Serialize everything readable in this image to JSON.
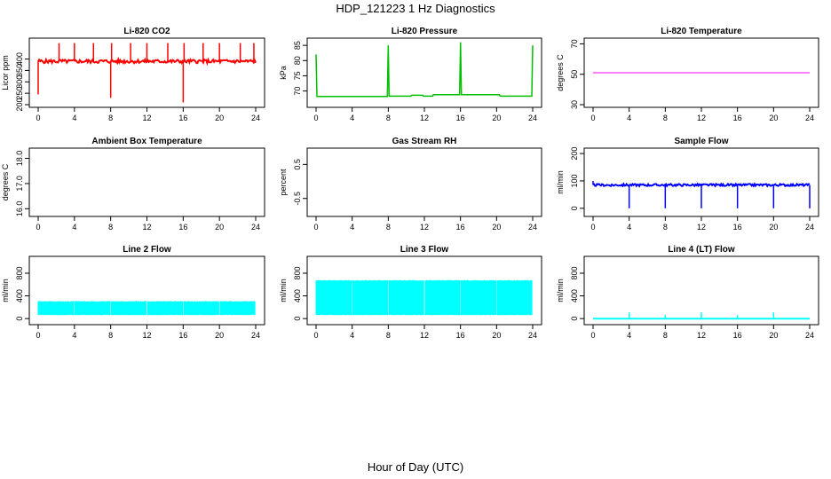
{
  "figure": {
    "title": "HDP_121223  1 Hz Diagnostics",
    "xlabel": "Hour of Day (UTC)"
  },
  "chart_data": [
    {
      "type": "line",
      "title": "Li-820 CO2",
      "ylabel": "Licor ppm",
      "xlim": [
        0,
        24
      ],
      "ylim": [
        200,
        480
      ],
      "xticks": [
        "0",
        "4",
        "8",
        "12",
        "16",
        "20",
        "24"
      ],
      "yticks": [
        "200",
        "250",
        "300",
        "350",
        "400"
      ],
      "color": "#ff0000",
      "series": [
        {
          "baseline": 390,
          "noise": 8,
          "spikes": [
            {
              "x": 0.0,
              "y": 245
            },
            {
              "x": 2.3,
              "y": 470
            },
            {
              "x": 4.0,
              "y": 470
            },
            {
              "x": 6.1,
              "y": 470
            },
            {
              "x": 8.0,
              "y": 230
            },
            {
              "x": 8.1,
              "y": 470
            },
            {
              "x": 10.2,
              "y": 470
            },
            {
              "x": 12.0,
              "y": 470
            },
            {
              "x": 14.3,
              "y": 470
            },
            {
              "x": 16.0,
              "y": 210
            },
            {
              "x": 16.1,
              "y": 470
            },
            {
              "x": 18.2,
              "y": 470
            },
            {
              "x": 20.0,
              "y": 470
            },
            {
              "x": 22.3,
              "y": 470
            },
            {
              "x": 23.8,
              "y": 470
            }
          ]
        }
      ]
    },
    {
      "type": "line",
      "title": "Li-820 Pressure",
      "ylabel": "kPa",
      "xlim": [
        0,
        24
      ],
      "ylim": [
        65.5,
        86.5
      ],
      "xticks": [
        "0",
        "4",
        "8",
        "12",
        "16",
        "20",
        "24"
      ],
      "yticks": [
        "70",
        "75",
        "80",
        "85"
      ],
      "color": "#00c000",
      "series": [
        {
          "points": [
            {
              "x": 0.0,
              "y": 82
            },
            {
              "x": 0.1,
              "y": 68.2
            },
            {
              "x": 7.9,
              "y": 68.2
            },
            {
              "x": 8.0,
              "y": 85
            },
            {
              "x": 8.1,
              "y": 68.3
            },
            {
              "x": 10.5,
              "y": 68.3
            },
            {
              "x": 10.6,
              "y": 68.6
            },
            {
              "x": 11.8,
              "y": 68.6
            },
            {
              "x": 11.9,
              "y": 68.3
            },
            {
              "x": 12.9,
              "y": 68.3
            },
            {
              "x": 13.0,
              "y": 68.8
            },
            {
              "x": 15.9,
              "y": 68.8
            },
            {
              "x": 16.0,
              "y": 86
            },
            {
              "x": 16.1,
              "y": 68.8
            },
            {
              "x": 20.3,
              "y": 68.8
            },
            {
              "x": 20.4,
              "y": 68.3
            },
            {
              "x": 23.9,
              "y": 68.3
            },
            {
              "x": 24.0,
              "y": 85
            }
          ]
        }
      ]
    },
    {
      "type": "line",
      "title": "Li-820 Temperature",
      "ylabel": "degrees C",
      "xlim": [
        0,
        24
      ],
      "ylim": [
        30,
        72
      ],
      "xticks": [
        "0",
        "4",
        "8",
        "12",
        "16",
        "20",
        "24"
      ],
      "yticks": [
        "30",
        "50",
        "70"
      ],
      "color": "#ff00ff",
      "series": [
        {
          "points": [
            {
              "x": 0,
              "y": 51
            },
            {
              "x": 24,
              "y": 51
            }
          ]
        }
      ]
    },
    {
      "type": "area",
      "title": "Ambient Box Temperature",
      "ylabel": "degrees C",
      "xlim": [
        0,
        24
      ],
      "ylim": [
        15.8,
        18.3
      ],
      "xticks": [
        "0",
        "4",
        "8",
        "12",
        "16",
        "20",
        "24"
      ],
      "yticks": [
        "16.0",
        "17.0",
        "18.0"
      ],
      "color": "#ff00ff",
      "series": [
        {
          "x": [
            0,
            1,
            2,
            3,
            4,
            5,
            6,
            7,
            7.5,
            8,
            9,
            10,
            12,
            14,
            16,
            18,
            19,
            20,
            21,
            22,
            23,
            24
          ],
          "low": [
            17.5,
            17.4,
            17.2,
            17.0,
            16.7,
            16.4,
            16.2,
            16.0,
            16.0,
            16.1,
            16.4,
            16.6,
            16.9,
            17.1,
            17.2,
            17.4,
            17.6,
            17.5,
            17.2,
            17.1,
            17.3,
            17.3
          ],
          "high": [
            18.1,
            18.0,
            17.8,
            17.6,
            17.3,
            17.1,
            16.8,
            16.6,
            16.6,
            16.8,
            17.0,
            17.2,
            17.4,
            17.6,
            17.7,
            17.8,
            18.1,
            18.0,
            17.7,
            17.9,
            17.9,
            17.8
          ]
        }
      ]
    },
    {
      "type": "area",
      "title": "Gas Stream RH",
      "ylabel": "percent",
      "xlim": [
        0,
        24
      ],
      "ylim": [
        -0.95,
        0.9
      ],
      "xticks": [
        "0",
        "4",
        "8",
        "12",
        "16",
        "20",
        "24"
      ],
      "yticks": [
        "-0.5",
        "0.5"
      ],
      "color": "#e6a000",
      "series": [
        {
          "x": [
            0,
            2,
            4,
            8,
            12,
            16,
            20,
            24
          ],
          "low": [
            -0.5,
            -0.6,
            -0.6,
            -0.6,
            -0.5,
            -0.6,
            -0.6,
            -0.6
          ],
          "high": [
            0.6,
            0.6,
            0.7,
            0.7,
            0.7,
            0.7,
            0.75,
            0.7
          ]
        }
      ]
    },
    {
      "type": "line",
      "title": "Sample Flow",
      "ylabel": "ml/min",
      "xlim": [
        0,
        24
      ],
      "ylim": [
        -20,
        210
      ],
      "xticks": [
        "0",
        "4",
        "8",
        "12",
        "16",
        "20",
        "24"
      ],
      "yticks": [
        "0",
        "100",
        "200"
      ],
      "color": "#0000ff",
      "series": [
        {
          "baseline": 85,
          "noise": 4,
          "spikes": [
            {
              "x": 0.0,
              "y": 100
            },
            {
              "x": 4.0,
              "y": 0
            },
            {
              "x": 8.0,
              "y": 0
            },
            {
              "x": 12.0,
              "y": 0
            },
            {
              "x": 16.0,
              "y": 0
            },
            {
              "x": 20.0,
              "y": 0
            },
            {
              "x": 24.0,
              "y": 0
            }
          ]
        }
      ]
    },
    {
      "type": "area",
      "title": "Line 2 Flow",
      "ylabel": "ml/min",
      "xlim": [
        0,
        24
      ],
      "ylim": [
        -60,
        1050
      ],
      "xticks": [
        "0",
        "4",
        "8",
        "12",
        "16",
        "20",
        "24"
      ],
      "yticks": [
        "0",
        "400",
        "800"
      ],
      "color": "#00ffff",
      "series": [
        {
          "low": 60,
          "high": 310,
          "gaps": [
            4.0,
            8.0,
            12.0,
            16.0,
            20.0,
            24.0
          ]
        }
      ]
    },
    {
      "type": "area",
      "title": "Line 3 Flow",
      "ylabel": "ml/min",
      "xlim": [
        0,
        24
      ],
      "ylim": [
        -60,
        1050
      ],
      "xticks": [
        "0",
        "4",
        "8",
        "12",
        "16",
        "20",
        "24"
      ],
      "yticks": [
        "0",
        "400",
        "800"
      ],
      "color": "#00ffff",
      "series": [
        {
          "low": 60,
          "high": 680,
          "gaps": [
            4.0,
            8.0,
            12.0,
            16.0,
            20.0,
            24.0
          ]
        }
      ]
    },
    {
      "type": "line",
      "title": "Line 4 (LT) Flow",
      "ylabel": "ml/min",
      "xlim": [
        0,
        24
      ],
      "ylim": [
        -60,
        1050
      ],
      "xticks": [
        "0",
        "4",
        "8",
        "12",
        "16",
        "20",
        "24"
      ],
      "yticks": [
        "0",
        "400",
        "800"
      ],
      "color": "#00ffff",
      "series": [
        {
          "baseline": 0,
          "spikes": [
            {
              "x": 4.0,
              "y": 110
            },
            {
              "x": 8.0,
              "y": 60
            },
            {
              "x": 12.0,
              "y": 110
            },
            {
              "x": 16.0,
              "y": 60
            },
            {
              "x": 20.0,
              "y": 110
            }
          ]
        }
      ]
    }
  ]
}
